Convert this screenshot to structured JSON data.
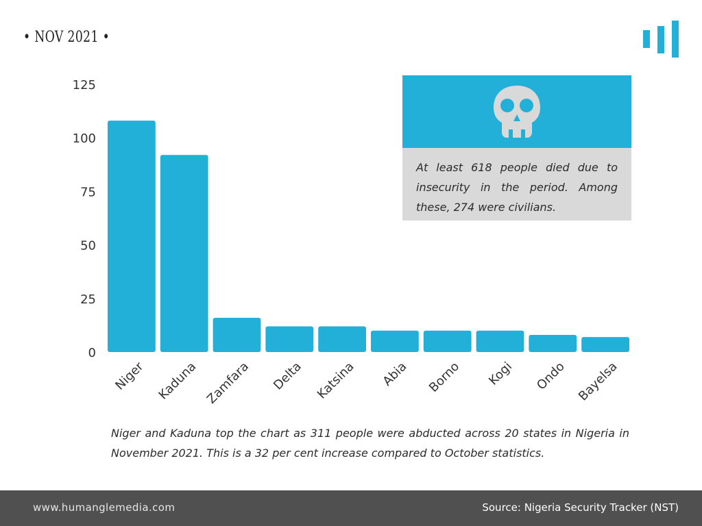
{
  "header": {
    "date_label": "• NOV 2021 •"
  },
  "colors": {
    "accent": "#22b0d8",
    "box_gray": "#d9d9d9",
    "footer_bg": "#505050"
  },
  "logo": {
    "icon": "bar-chart-logo-icon"
  },
  "chart_data": {
    "type": "bar",
    "title": "",
    "xlabel": "",
    "ylabel": "",
    "categories": [
      "Niger",
      "Kaduna",
      "Zamfara",
      "Delta",
      "Katsina",
      "Abia",
      "Borno",
      "Kogi",
      "Ondo",
      "Bayelsa"
    ],
    "values": [
      108,
      92,
      16,
      12,
      12,
      10,
      10,
      10,
      8,
      7
    ],
    "ylim": [
      0,
      125
    ],
    "yticks": [
      0,
      25,
      50,
      75,
      100,
      125
    ],
    "grid": false,
    "bar_color": "#22b0d8"
  },
  "info_box": {
    "icon": "skull-icon",
    "text": "At least 618 people died due to insecurity in the period. Among these, 274 were civilians."
  },
  "caption": "Niger and Kaduna top the chart as 311 people were abducted across 20 states in Nigeria in November 2021. This is a 32 per cent increase compared to October statistics.",
  "footer": {
    "website": "www.humanglemedia.com",
    "source": "Source: Nigeria Security Tracker (NST)"
  }
}
